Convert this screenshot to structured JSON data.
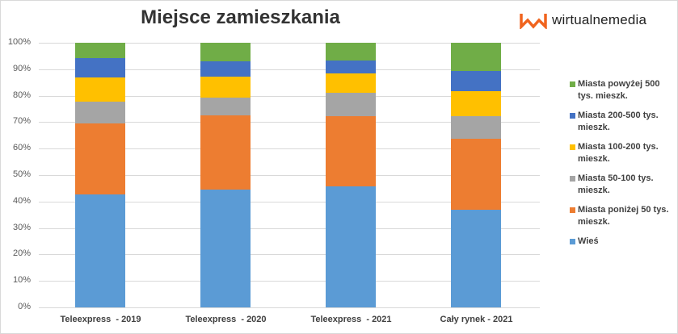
{
  "header": {
    "title": "Miejsce zamieszkania",
    "logo_text": "wirtualnemedia",
    "logo_color": "#f0641e"
  },
  "chart_data": {
    "type": "bar",
    "stacked": true,
    "percent_stacked": true,
    "title": "Miejsce zamieszkania",
    "xlabel": "",
    "ylabel": "",
    "ylim": [
      0,
      100
    ],
    "yticks": [
      "0%",
      "10%",
      "20%",
      "30%",
      "40%",
      "50%",
      "60%",
      "70%",
      "80%",
      "90%",
      "100%"
    ],
    "grid": true,
    "legend_position": "right",
    "categories": [
      "Teleexpress  - 2019",
      "Teleexpress  - 2020",
      "Teleexpress  - 2021",
      "Cały rynek - 2021"
    ],
    "series": [
      {
        "name": "Wieś",
        "color": "#5b9bd5",
        "values": [
          42.7,
          44.5,
          45.7,
          36.9
        ]
      },
      {
        "name": "Miasta poniżej 50 tys. mieszk.",
        "color": "#ed7d31",
        "values": [
          26.8,
          28.0,
          26.5,
          26.8
        ]
      },
      {
        "name": "Miasta 50-100 tys. mieszk.",
        "color": "#a5a5a5",
        "values": [
          8.2,
          6.7,
          8.8,
          8.5
        ]
      },
      {
        "name": "Miasta 100-200 tys. mieszk.",
        "color": "#ffc000",
        "values": [
          9.1,
          7.9,
          7.3,
          9.5
        ]
      },
      {
        "name": "Miasta 200-500 tys. mieszk.",
        "color": "#4472c4",
        "values": [
          7.3,
          5.8,
          4.9,
          7.6
        ]
      },
      {
        "name": "Miasta powyżej 500 tys. mieszk.",
        "color": "#70ad47",
        "values": [
          5.8,
          7.0,
          6.7,
          10.7
        ]
      }
    ]
  },
  "legend": {
    "items": [
      {
        "label": "Miasta powyżej 500 tys. mieszk.",
        "color": "#70ad47"
      },
      {
        "label": "Miasta 200-500 tys. mieszk.",
        "color": "#4472c4"
      },
      {
        "label": "Miasta 100-200 tys. mieszk.",
        "color": "#ffc000"
      },
      {
        "label": "Miasta 50-100 tys. mieszk.",
        "color": "#a5a5a5"
      },
      {
        "label": "Miasta poniżej 50 tys. mieszk.",
        "color": "#ed7d31"
      },
      {
        "label": "Wieś",
        "color": "#5b9bd5"
      }
    ]
  }
}
